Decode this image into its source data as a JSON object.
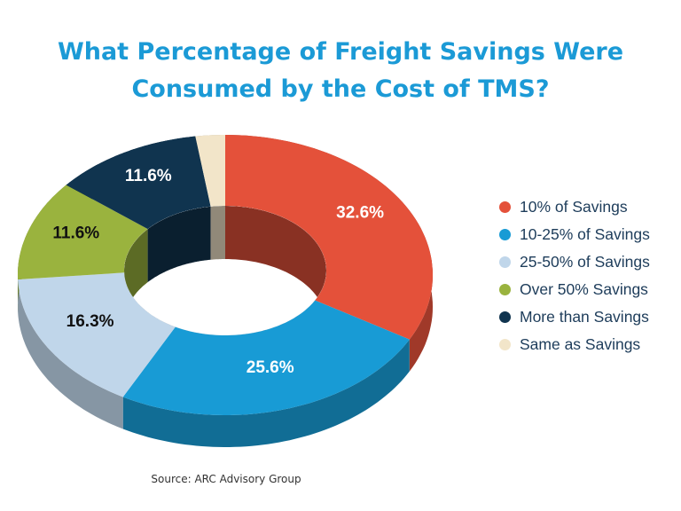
{
  "chart_data": {
    "type": "pie",
    "style": "3d-donut",
    "title": "What Percentage of Freight Savings Were Consumed by the Cost of TMS?",
    "source": "Source: ARC Advisory Group",
    "legend_position": "right",
    "slices": [
      {
        "name": "10% of Savings",
        "value": 32.6,
        "label": "32.6%",
        "color": "#e4513a"
      },
      {
        "name": "10-25% of Savings",
        "value": 25.6,
        "label": "25.6%",
        "color": "#189bd5"
      },
      {
        "name": "25-50% of Savings",
        "value": 16.3,
        "label": "16.3%",
        "color": "#c0d6ea"
      },
      {
        "name": "Over 50% Savings",
        "value": 11.6,
        "label": "11.6%",
        "color": "#9ab33e"
      },
      {
        "name": "More than Savings",
        "value": 11.6,
        "label": "11.6%",
        "color": "#10344f"
      },
      {
        "name": "Same as Savings",
        "value": 2.3,
        "label": "",
        "color": "#f2e5c9"
      }
    ]
  }
}
